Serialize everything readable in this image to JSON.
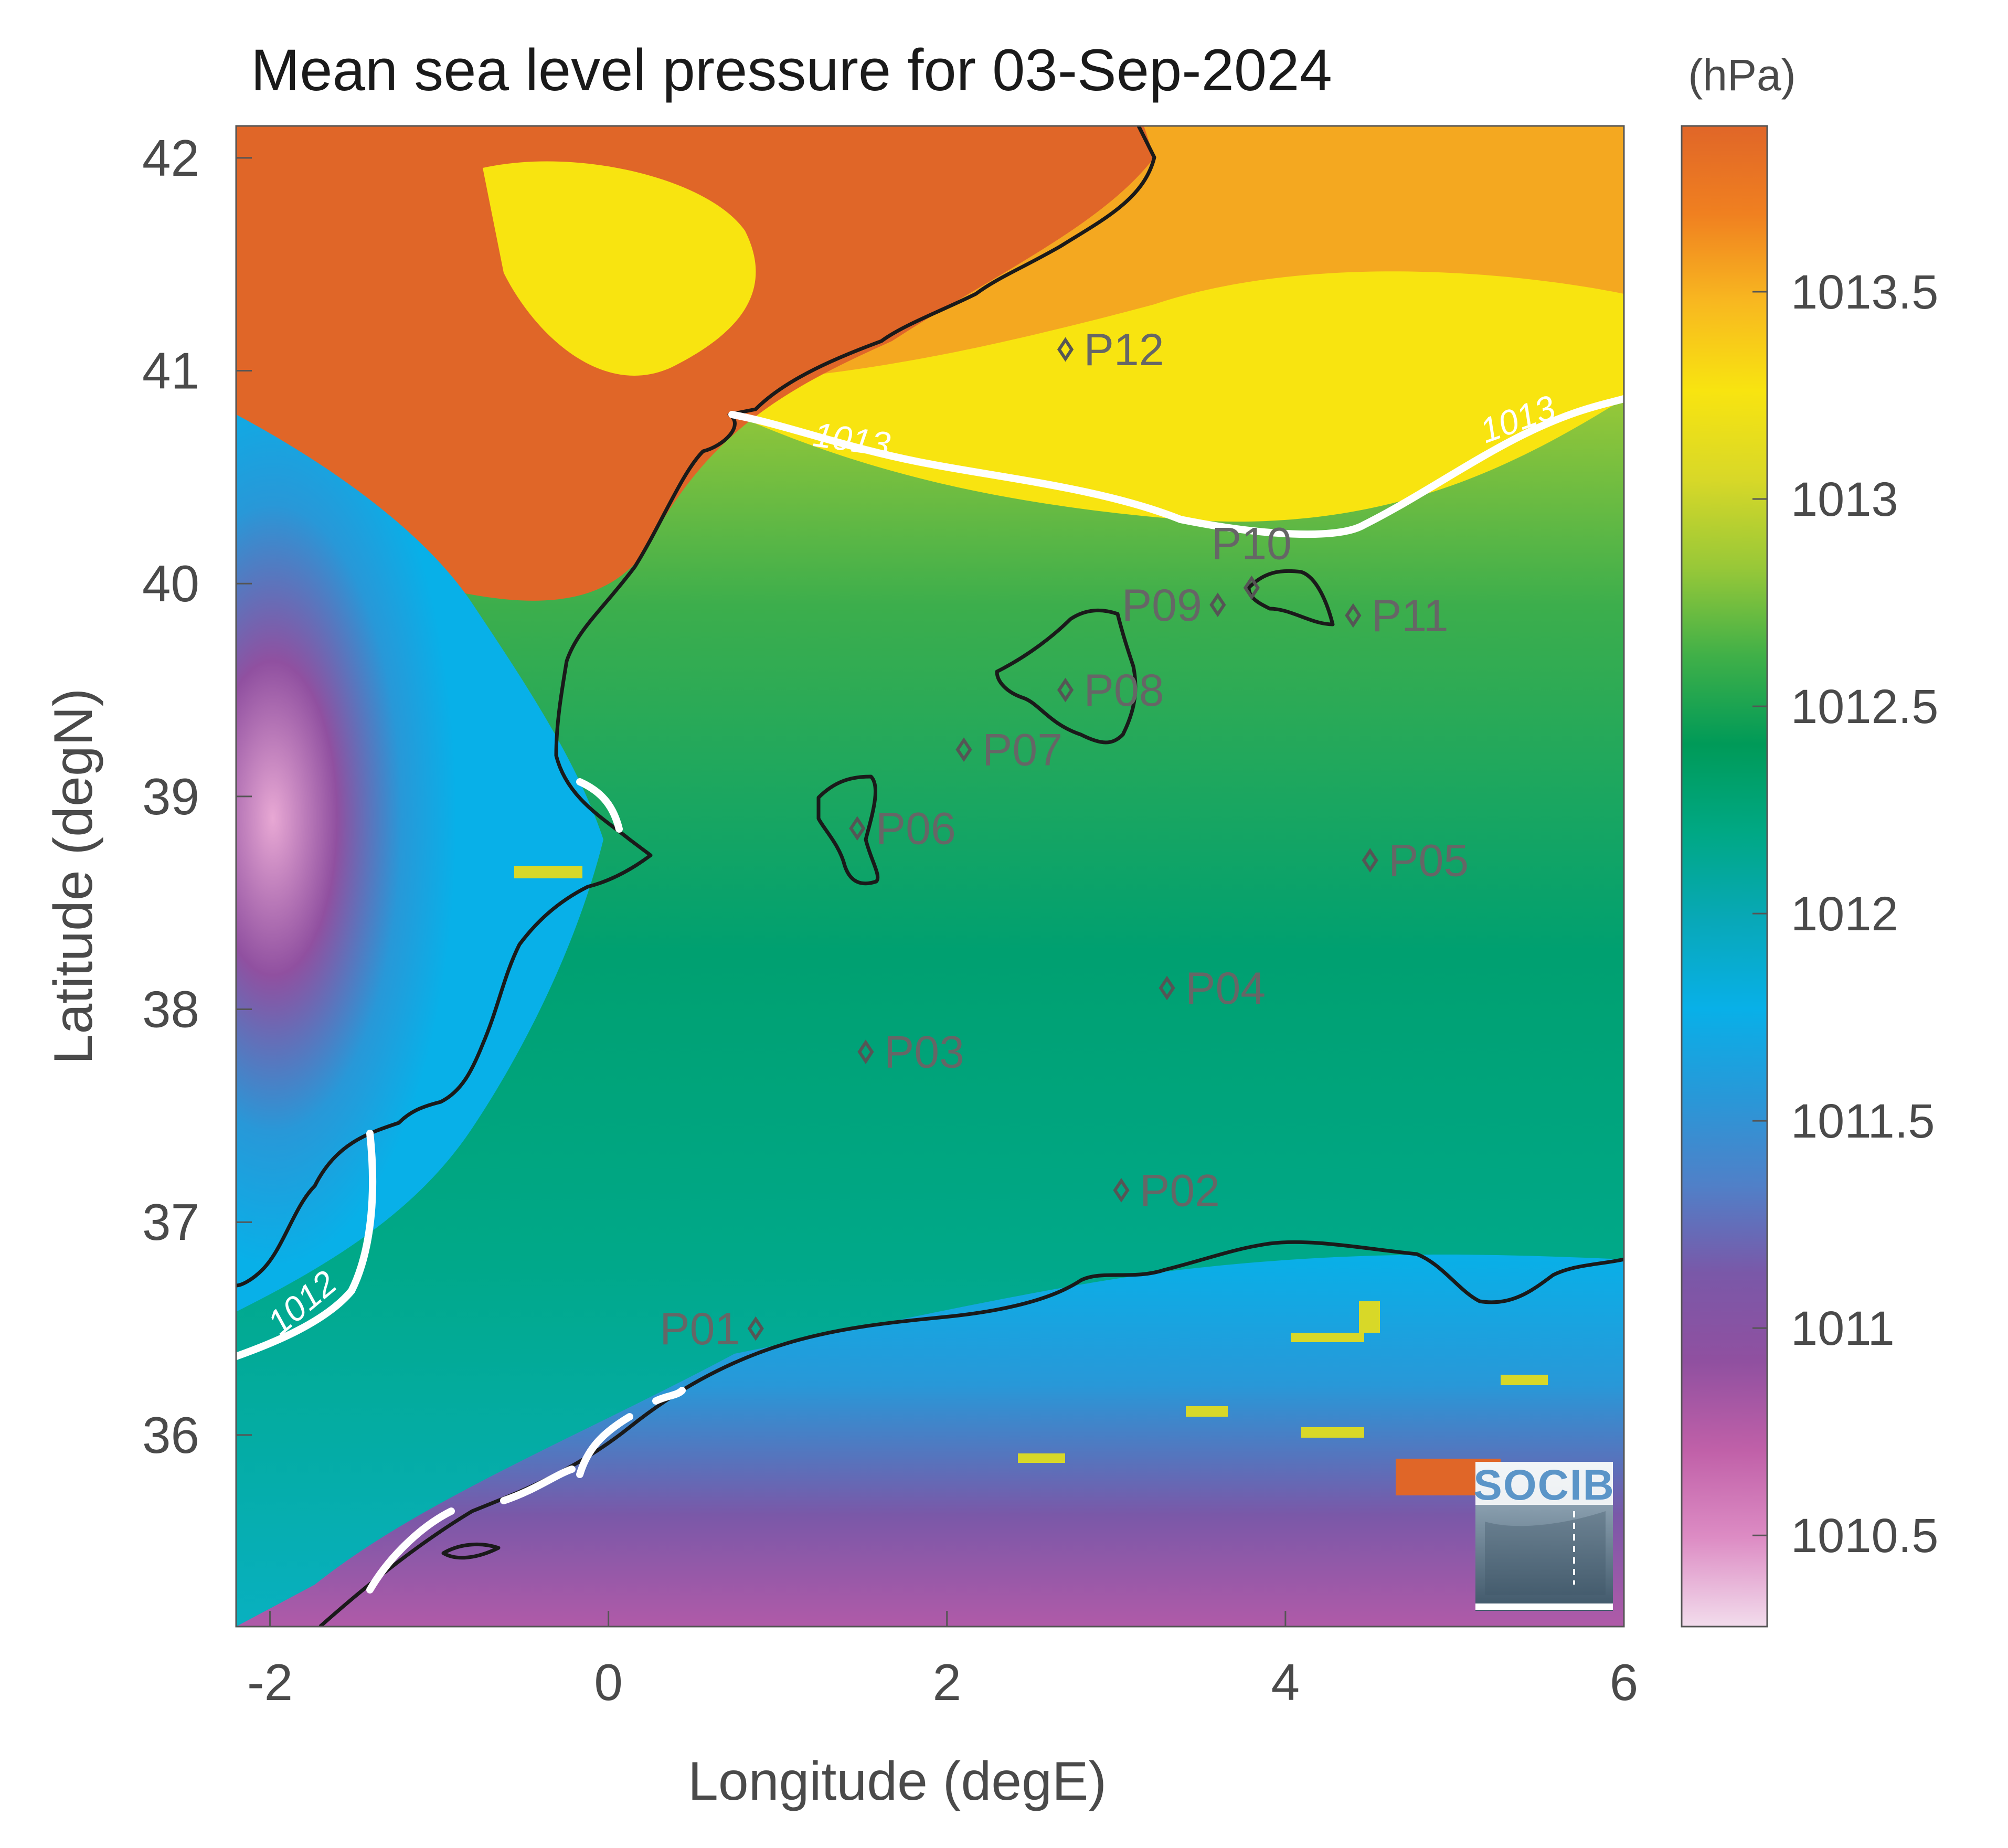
{
  "title": "Mean sea level pressure for 03-Sep-2024",
  "xlabel": "Longitude (degE)",
  "ylabel": "Latitude (degN)",
  "colorbar_unit": "(hPa)",
  "logo": "SOCIB",
  "chart_data": {
    "type": "heatmap",
    "xlim": [
      -2.2,
      6
    ],
    "ylim": [
      35.1,
      42.15
    ],
    "x_ticks": [
      -2,
      0,
      2,
      4,
      6
    ],
    "x_tick_labels": [
      "-2",
      "0",
      "2",
      "4",
      "6"
    ],
    "y_ticks": [
      36,
      37,
      38,
      39,
      40,
      41,
      42
    ],
    "y_tick_labels": [
      "36",
      "37",
      "38",
      "39",
      "40",
      "41",
      "42"
    ],
    "colorbar": {
      "range": [
        1010.28,
        1013.9
      ],
      "ticks": [
        1010.5,
        1011,
        1011.5,
        1012,
        1012.5,
        1013,
        1013.5
      ],
      "tick_labels": [
        "1010.5",
        "1011",
        "1011.5",
        "1012",
        "1012.5",
        "1013",
        "1013.5"
      ],
      "colors": [
        "#f2dcec",
        "#dd8cc4",
        "#c060a8",
        "#9050a0",
        "#7a58a8",
        "#5080c8",
        "#2898d8",
        "#08b0e8",
        "#08a8b8",
        "#00a884",
        "#009a58",
        "#40b048",
        "#98c838",
        "#d8d828",
        "#f8e410",
        "#f8b820",
        "#f08020",
        "#e06628"
      ]
    },
    "contours": [
      {
        "label": "1013"
      },
      {
        "label": "1013"
      },
      {
        "label": "1012"
      }
    ],
    "stations": [
      {
        "name": "P01",
        "lon": 0.87,
        "lat": 36.5
      },
      {
        "name": "P02",
        "lon": 3.03,
        "lat": 37.15
      },
      {
        "name": "P03",
        "lon": 1.52,
        "lat": 37.8
      },
      {
        "name": "P04",
        "lon": 3.3,
        "lat": 38.1
      },
      {
        "name": "P05",
        "lon": 4.5,
        "lat": 38.7
      },
      {
        "name": "P06",
        "lon": 1.47,
        "lat": 38.85
      },
      {
        "name": "P07",
        "lon": 2.1,
        "lat": 39.22
      },
      {
        "name": "P08",
        "lon": 2.7,
        "lat": 39.5
      },
      {
        "name": "P09",
        "lon": 3.6,
        "lat": 39.9
      },
      {
        "name": "P10",
        "lon": 3.8,
        "lat": 39.98
      },
      {
        "name": "P11",
        "lon": 4.4,
        "lat": 39.85
      },
      {
        "name": "P12",
        "lon": 2.7,
        "lat": 41.1
      }
    ]
  }
}
